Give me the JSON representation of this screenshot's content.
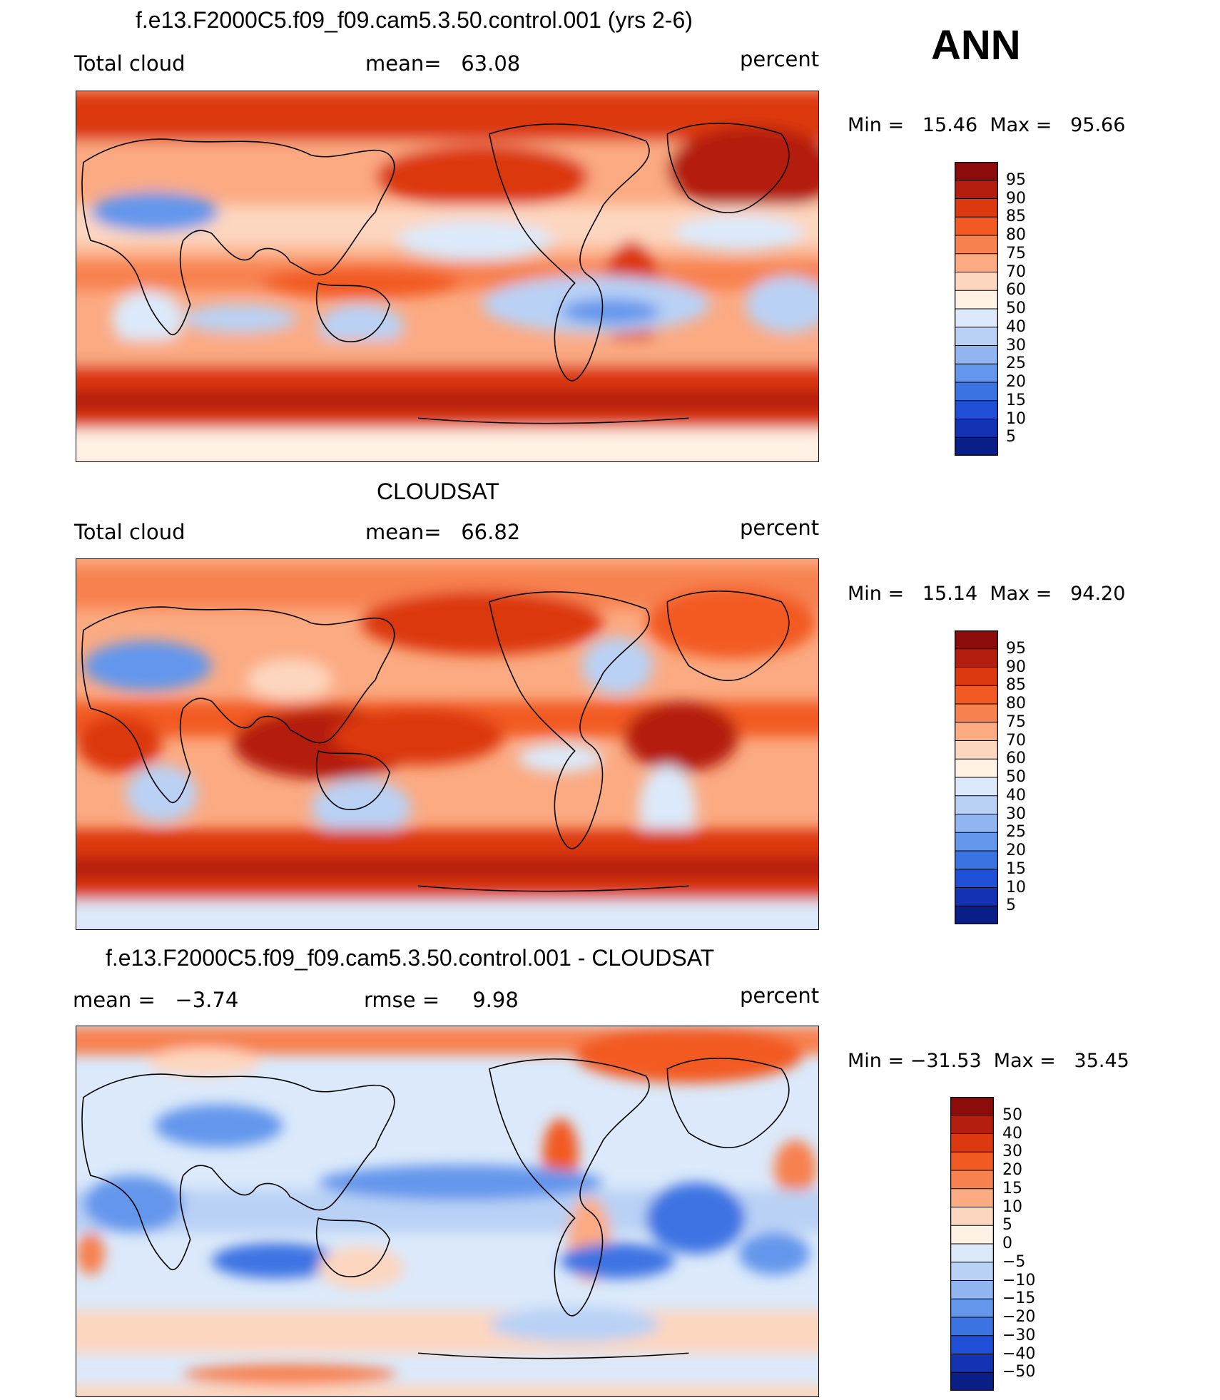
{
  "season": "ANN",
  "panels": [
    {
      "id": "model",
      "title": "f.e13.F2000C5.f09_f09.cam5.3.50.control.001 (yrs 2-6)",
      "left_label": "Total cloud",
      "mid_label": "mean=   63.08",
      "units": "percent",
      "minmax": "Min =   15.46  Max =   95.66"
    },
    {
      "id": "obs",
      "title": "CLOUDSAT",
      "left_label": "Total cloud",
      "mid_label": "mean=   66.82",
      "units": "percent",
      "minmax": "Min =   15.14  Max =   94.20"
    },
    {
      "id": "diff",
      "title": "f.e13.F2000C5.f09_f09.cam5.3.50.control.001 - CLOUDSAT",
      "left_label": "mean =   −3.74",
      "mid_label": "rmse =     9.98",
      "units": "percent",
      "minmax": "Min = −31.53  Max =   35.45"
    }
  ],
  "chart_data": [
    {
      "type": "heatmap",
      "title": "f.e13.F2000C5.f09_f09.cam5.3.50.control.001 (yrs 2-6)",
      "field": "Total cloud",
      "units": "percent",
      "mean": 63.08,
      "min": 15.46,
      "max": 95.66,
      "colorbar_levels": [
        "95",
        "90",
        "85",
        "80",
        "75",
        "70",
        "60",
        "50",
        "40",
        "30",
        "25",
        "20",
        "15",
        "10",
        "5"
      ],
      "colorbar_colors": [
        "#8c0b0b",
        "#b41e0e",
        "#dc3911",
        "#f25a24",
        "#f7814f",
        "#fbaa82",
        "#fdd6bf",
        "#fff1e4",
        "#dbe9fa",
        "#b9d1f5",
        "#91b5f0",
        "#6496ec",
        "#3c73e3",
        "#1f4fd6",
        "#1432b4",
        "#0a1e87"
      ]
    },
    {
      "type": "heatmap",
      "title": "CLOUDSAT",
      "field": "Total cloud",
      "units": "percent",
      "mean": 66.82,
      "min": 15.14,
      "max": 94.2,
      "colorbar_levels": [
        "95",
        "90",
        "85",
        "80",
        "75",
        "70",
        "60",
        "50",
        "40",
        "30",
        "25",
        "20",
        "15",
        "10",
        "5"
      ],
      "colorbar_colors": [
        "#8c0b0b",
        "#b41e0e",
        "#dc3911",
        "#f25a24",
        "#f7814f",
        "#fbaa82",
        "#fdd6bf",
        "#fff1e4",
        "#dbe9fa",
        "#b9d1f5",
        "#91b5f0",
        "#6496ec",
        "#3c73e3",
        "#1f4fd6",
        "#1432b4",
        "#0a1e87"
      ]
    },
    {
      "type": "heatmap",
      "title": "f.e13.F2000C5.f09_f09.cam5.3.50.control.001 - CLOUDSAT",
      "units": "percent",
      "mean": -3.74,
      "rmse": 9.98,
      "min": -31.53,
      "max": 35.45,
      "colorbar_levels": [
        "50",
        "40",
        "30",
        "20",
        "15",
        "10",
        "5",
        "0",
        "−5",
        "−10",
        "−15",
        "−20",
        "−30",
        "−40",
        "−50"
      ],
      "colorbar_colors": [
        "#8c0b0b",
        "#b41e0e",
        "#dc3911",
        "#f25a24",
        "#f7814f",
        "#fbaa82",
        "#fdd6bf",
        "#fff1e4",
        "#dbe9fa",
        "#b9d1f5",
        "#91b5f0",
        "#6496ec",
        "#3c73e3",
        "#1f4fd6",
        "#1432b4",
        "#0a1e87"
      ]
    }
  ]
}
